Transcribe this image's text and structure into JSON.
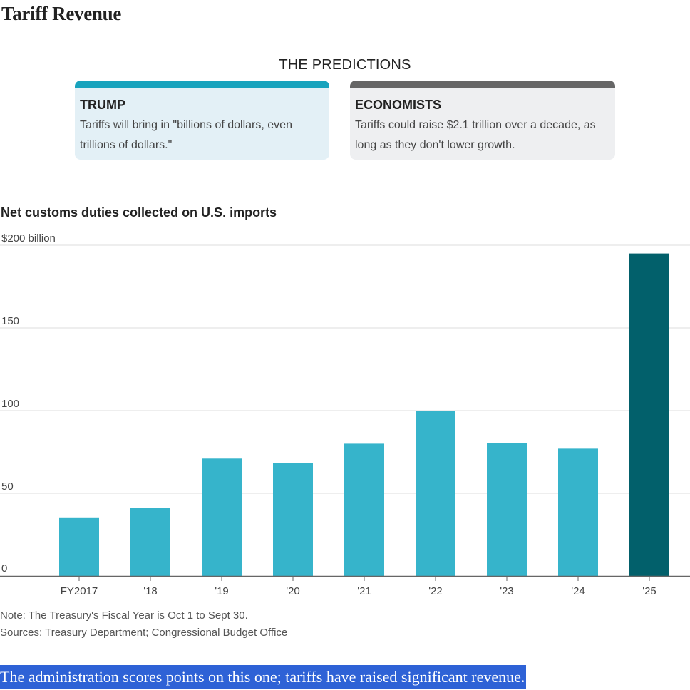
{
  "title": "Tariff Revenue",
  "predictions": {
    "heading": "THE PREDICTIONS",
    "trump": {
      "name": "TRUMP",
      "quote": "Tariffs will bring in \"billions of dollars, even trillions of dollars.\"",
      "color": "#18a3bd"
    },
    "economists": {
      "name": "ECONOMISTS",
      "quote": "Tariffs could raise $2.1 trillion over a decade, as long as they don't lower growth.",
      "color": "#666666"
    }
  },
  "chart_data": {
    "type": "bar",
    "title": "Net customs duties collected on U.S. imports",
    "categories": [
      "FY2017",
      "'18",
      "'19",
      "'20",
      "'21",
      "'22",
      "'23",
      "'24",
      "'25"
    ],
    "values": [
      35,
      41,
      71,
      68.5,
      80,
      100,
      80.5,
      77,
      195
    ],
    "ylim": [
      0,
      200
    ],
    "yticks": [
      0,
      50,
      100,
      150,
      200
    ],
    "ytick_labels": [
      "0",
      "50",
      "100",
      "150",
      "$200 billion"
    ],
    "grid": true,
    "bar_color": "#36b4cb",
    "highlight_color": "#02606b",
    "highlight_index": 8
  },
  "notes": {
    "note": "Note: The Treasury's Fiscal Year is Oct 1 to Sept 30.",
    "sources": "Sources: Treasury Department; Congressional Budget Office"
  },
  "caption": "The administration scores points on this one; tariffs have raised significant revenue."
}
